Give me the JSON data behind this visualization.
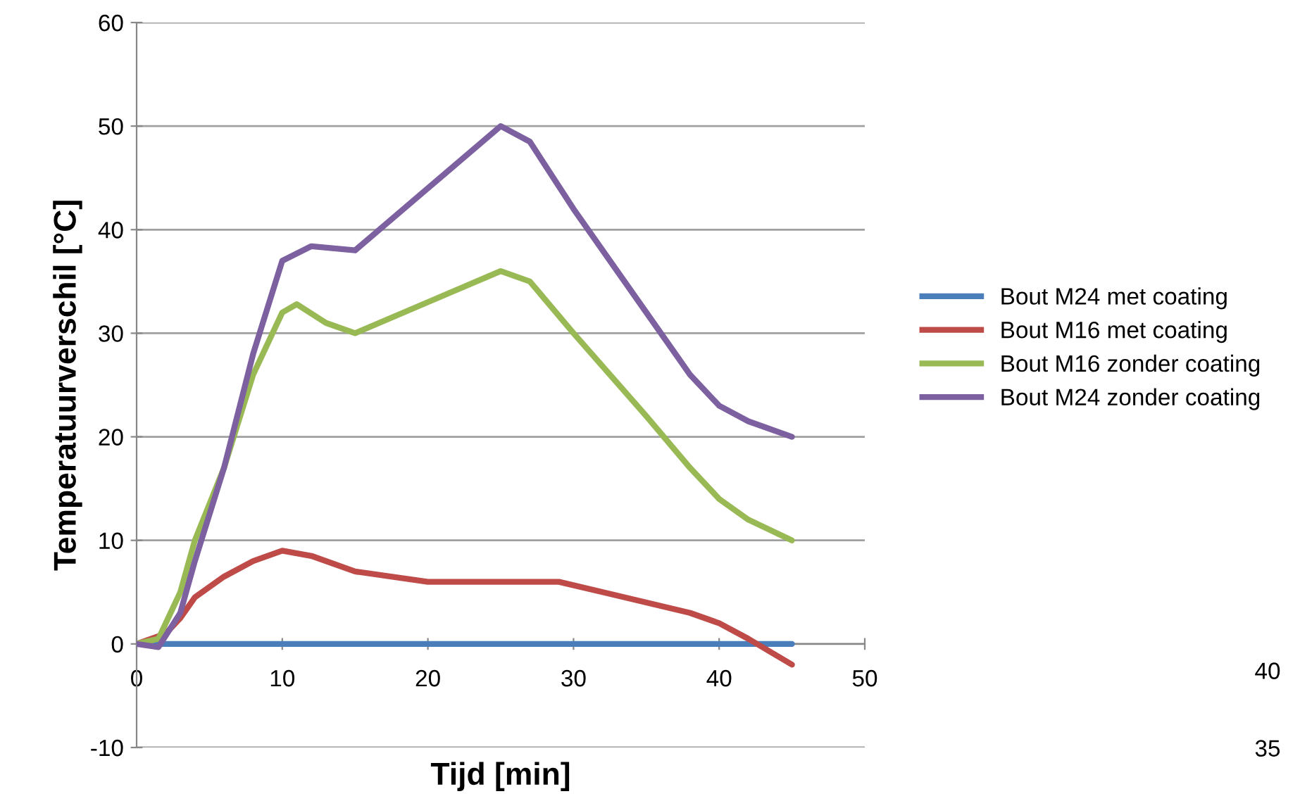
{
  "chart_data": {
    "type": "line",
    "xlabel": "Tijd [min]",
    "ylabel": "Temperatuurverschil [°C]",
    "xlim": [
      0,
      50
    ],
    "xticks": [
      0,
      10,
      20,
      30,
      40,
      50
    ],
    "ylim": [
      -10,
      60
    ],
    "yticks": [
      -10,
      0,
      10,
      20,
      30,
      40,
      50,
      60
    ],
    "grid": "y",
    "legend": "right",
    "marker": "none",
    "line_style": "solid",
    "series": [
      {
        "name": "Bout M24 met coating",
        "color": "#4a7ebb",
        "x": [
          0,
          45
        ],
        "values": [
          0,
          0
        ]
      },
      {
        "name": "Bout M16 met coating",
        "color": "#be4b48",
        "x": [
          0,
          2,
          3,
          4,
          6,
          8,
          10,
          12,
          15,
          20,
          25,
          29,
          32,
          35,
          38,
          40,
          42,
          45
        ],
        "values": [
          0,
          1,
          2.5,
          4.5,
          6.5,
          8,
          9,
          8.5,
          7,
          6,
          6,
          6,
          5,
          4,
          3,
          2,
          0.5,
          -2
        ]
      },
      {
        "name": "Bout M16 zonder coating",
        "color": "#98b954",
        "x": [
          0,
          1.5,
          3,
          4,
          6,
          8,
          10,
          11,
          13,
          15,
          20,
          25,
          27,
          30,
          35,
          38,
          40,
          42,
          45
        ],
        "values": [
          0,
          0.5,
          5,
          10,
          17,
          26,
          32,
          32.8,
          31,
          30,
          33,
          36,
          35,
          30,
          22,
          17,
          14,
          12,
          10
        ]
      },
      {
        "name": "Bout M24 zonder coating",
        "color": "#7d60a0",
        "x": [
          0,
          1.5,
          3,
          4,
          6,
          8,
          10,
          12,
          15,
          20,
          25,
          27,
          30,
          35,
          38,
          40,
          42,
          45
        ],
        "values": [
          0,
          -0.3,
          3,
          8,
          17,
          28,
          37,
          38.4,
          38,
          44,
          50,
          48.5,
          42,
          32,
          26,
          23,
          21.5,
          20
        ]
      }
    ],
    "annotations": [
      "40",
      "35"
    ]
  }
}
